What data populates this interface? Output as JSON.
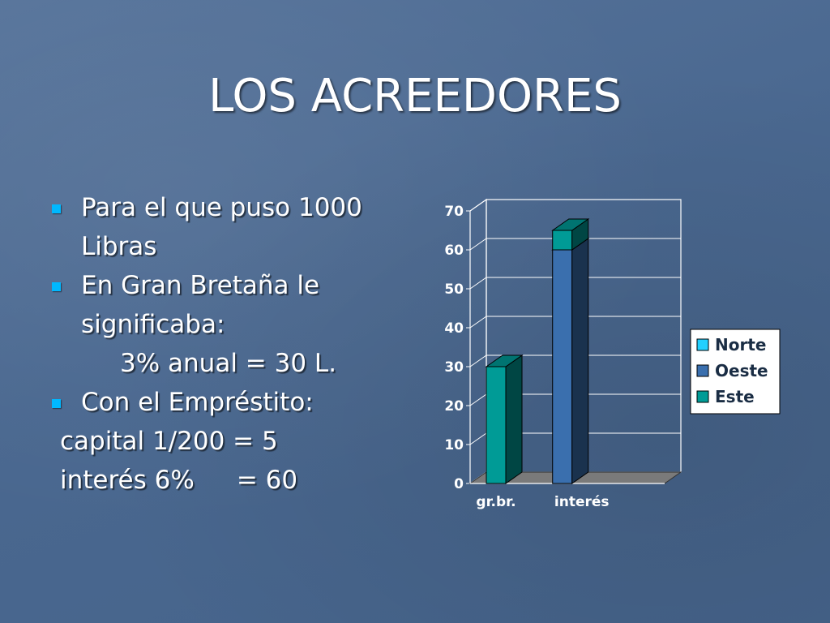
{
  "slide": {
    "title": "LOS ACREEDORES",
    "bullets": [
      {
        "text": "Para el que puso 1000"
      },
      {
        "text": "Libras"
      },
      {
        "text": "En Gran Bretaña le"
      },
      {
        "text": "significaba:"
      },
      {
        "text": "3% anual = 30 L."
      },
      {
        "text": "Con el Empréstito:"
      },
      {
        "text": "capital 1/200 = 5"
      },
      {
        "text_a": "interés 6%",
        "text_b": "= 60"
      }
    ],
    "colors": {
      "bullet": "#00b8ff",
      "background": "#4a6890"
    }
  },
  "chart_data": {
    "type": "bar",
    "style": "3d-stacked-column",
    "categories": [
      "gr.br.",
      "interés"
    ],
    "series": [
      {
        "name": "Norte",
        "color": "#22d0ff",
        "values": [
          0,
          0
        ]
      },
      {
        "name": "Oeste",
        "color": "#3a6fae",
        "values": [
          0,
          60
        ]
      },
      {
        "name": "Este",
        "color": "#009b96",
        "values": [
          30,
          5
        ]
      }
    ],
    "ylim": [
      0,
      70
    ],
    "yticks": [
      "0",
      "10",
      "20",
      "30",
      "40",
      "50",
      "60",
      "70"
    ],
    "grid": true,
    "legend_position": "right"
  }
}
